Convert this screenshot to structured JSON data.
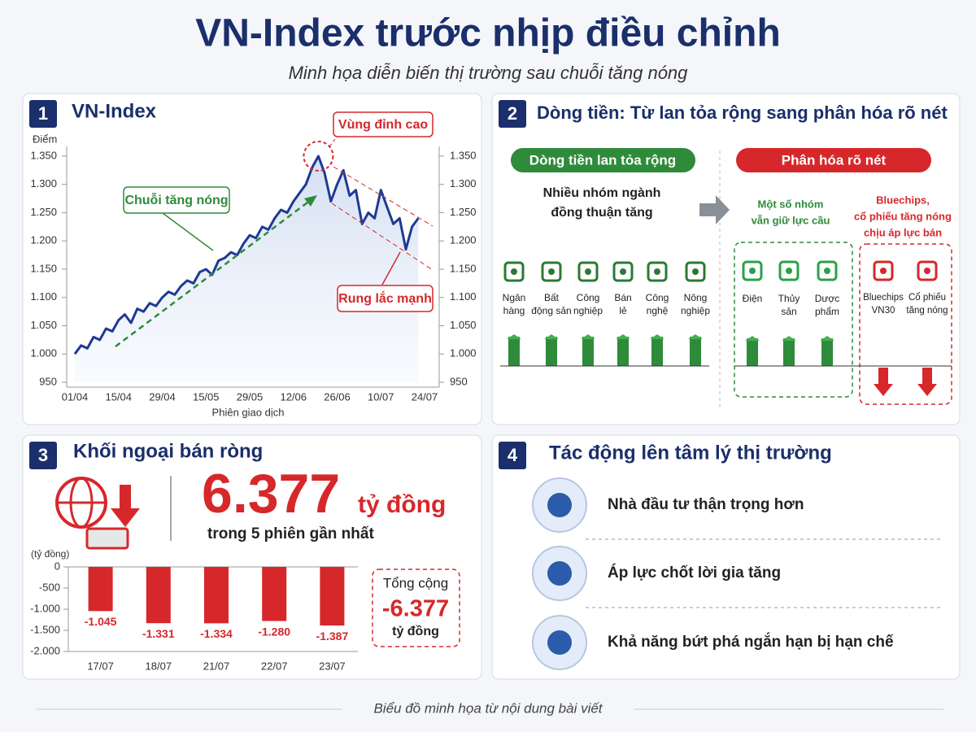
{
  "title": "VN-Index trước nhịp điều chỉnh",
  "subtitle": "Minh họa diễn biến thị trường sau chuỗi tăng nóng",
  "badges": [
    "1",
    "2",
    "3",
    "4"
  ],
  "chart_data": [
    {
      "type": "line",
      "title": "VN-Index",
      "y_label": "Điểm",
      "x_label": "Phiên giao dịch",
      "color": "#1f3a93",
      "categories": [
        "01/04",
        null,
        null,
        null,
        null,
        null,
        null,
        "15/04",
        null,
        null,
        null,
        null,
        null,
        null,
        "29/04",
        null,
        null,
        null,
        null,
        null,
        null,
        "15/05",
        null,
        null,
        null,
        null,
        null,
        null,
        "29/05",
        null,
        null,
        null,
        null,
        null,
        null,
        "12/06",
        null,
        null,
        null,
        null,
        null,
        null,
        "26/06",
        null,
        null,
        null,
        null,
        null,
        null,
        "10/07",
        null,
        null,
        null,
        null,
        null,
        null,
        "24/07"
      ],
      "values": [
        1000,
        1015,
        1010,
        1030,
        1025,
        1045,
        1040,
        1060,
        1070,
        1055,
        1080,
        1075,
        1090,
        1085,
        1100,
        1110,
        1105,
        1120,
        1130,
        1125,
        1145,
        1150,
        1140,
        1165,
        1170,
        1180,
        1175,
        1195,
        1210,
        1205,
        1225,
        1220,
        1240,
        1255,
        1250,
        1270,
        1285,
        1300,
        1330,
        1350,
        1320,
        1270,
        1300,
        1325,
        1280,
        1290,
        1230,
        1250,
        1240,
        1290,
        1260,
        1230,
        1240,
        1185,
        1225,
        1240,
        null
      ],
      "ylim": [
        950,
        1360
      ],
      "yticks": [
        950,
        {
          "value": 1000,
          "label": "1.000"
        },
        {
          "value": 1050,
          "label": "1.050"
        },
        {
          "value": 1100,
          "label": "1.100"
        },
        {
          "value": 1150,
          "label": "1.150"
        },
        {
          "value": 1200,
          "label": "1.200"
        },
        {
          "value": 1250,
          "label": "1.250"
        },
        {
          "value": 1300,
          "label": "1.300"
        },
        {
          "value": 1350,
          "label": "1.350"
        }
      ],
      "y2lim": [
        950,
        1360
      ],
      "y2ticks": [
        950,
        {
          "value": 1000,
          "label": "1.000"
        },
        {
          "value": 1050,
          "label": "1.050"
        },
        {
          "value": 1100,
          "label": "1.100"
        },
        {
          "value": 1150,
          "label": "1.150"
        },
        {
          "value": 1200,
          "label": "1.200"
        },
        {
          "value": 1250,
          "label": "1.250"
        },
        {
          "value": 1300,
          "label": "1.300"
        },
        {
          "value": 1350,
          "label": "1.350"
        }
      ],
      "annotations": [
        "Vùng đỉnh cao",
        "Chuỗi tăng nóng",
        "Rung lắc mạnh"
      ]
    },
    {
      "type": "bar",
      "title": "Khối ngoại bán ròng",
      "y_label": "(tỷ đồng)",
      "color": "#d6282b",
      "categories": [
        "17/07",
        "18/07",
        "21/07",
        "22/07",
        "23/07"
      ],
      "values": [
        -1045,
        -1331,
        -1334,
        -1280,
        -1387
      ],
      "value_labels": [
        "-1.045",
        "-1.331",
        "-1.334",
        "-1.280",
        "-1.387"
      ],
      "ylim": [
        -2000,
        0
      ],
      "yticks": [
        0,
        -500,
        {
          "value": -1000,
          "label": "-1.000"
        },
        {
          "value": -1500,
          "label": "-1.500"
        },
        {
          "value": -2000,
          "label": "-2.000"
        }
      ]
    }
  ],
  "flow": {
    "title": "Dòng tiền: Từ lan tỏa rộng sang phân hóa rõ nét",
    "broad": {
      "label": "Dòng tiền lan tỏa rộng",
      "note": [
        "Nhiều nhóm ngành",
        "đồng thuận tăng"
      ],
      "sectors": [
        [
          "Ngân",
          "hàng"
        ],
        [
          "Bất",
          "động sản"
        ],
        [
          "Công",
          "nghiệp"
        ],
        [
          "Bán",
          "lẻ"
        ],
        [
          "Công",
          "nghệ"
        ],
        [
          "Nông",
          "nghiệp"
        ]
      ]
    },
    "split": {
      "label": "Phân hóa rõ nét",
      "hold": {
        "note": [
          "Một số nhóm",
          "vẫn giữ lực cầu"
        ],
        "sectors": [
          [
            "Điện"
          ],
          [
            "Thủy",
            "sản"
          ],
          [
            "Dược",
            "phẩm"
          ]
        ]
      },
      "sell": {
        "note": [
          "Bluechips,",
          "cổ phiếu tăng nóng",
          "chịu áp lực bán"
        ],
        "sectors": [
          [
            "Bluechips",
            "VN30"
          ],
          [
            "Cổ phiếu",
            "tăng nóng"
          ]
        ]
      }
    }
  },
  "foreign": {
    "amount": "6.377",
    "unit": "tỷ đồng",
    "period": "trong 5 phiên gần nhất",
    "total_label": "Tổng cộng",
    "total": "-6.377",
    "total_unit": "tỷ đồng"
  },
  "sentiment": {
    "title": "Tác động lên tâm lý thị trường",
    "items": [
      "Nhà đầu tư thận trọng hơn",
      "Áp lực chốt lời gia tăng",
      "Khả năng bứt phá ngắn hạn bị hạn chế"
    ]
  },
  "footer": "Biểu đồ minh họa từ nội dung bài viết"
}
